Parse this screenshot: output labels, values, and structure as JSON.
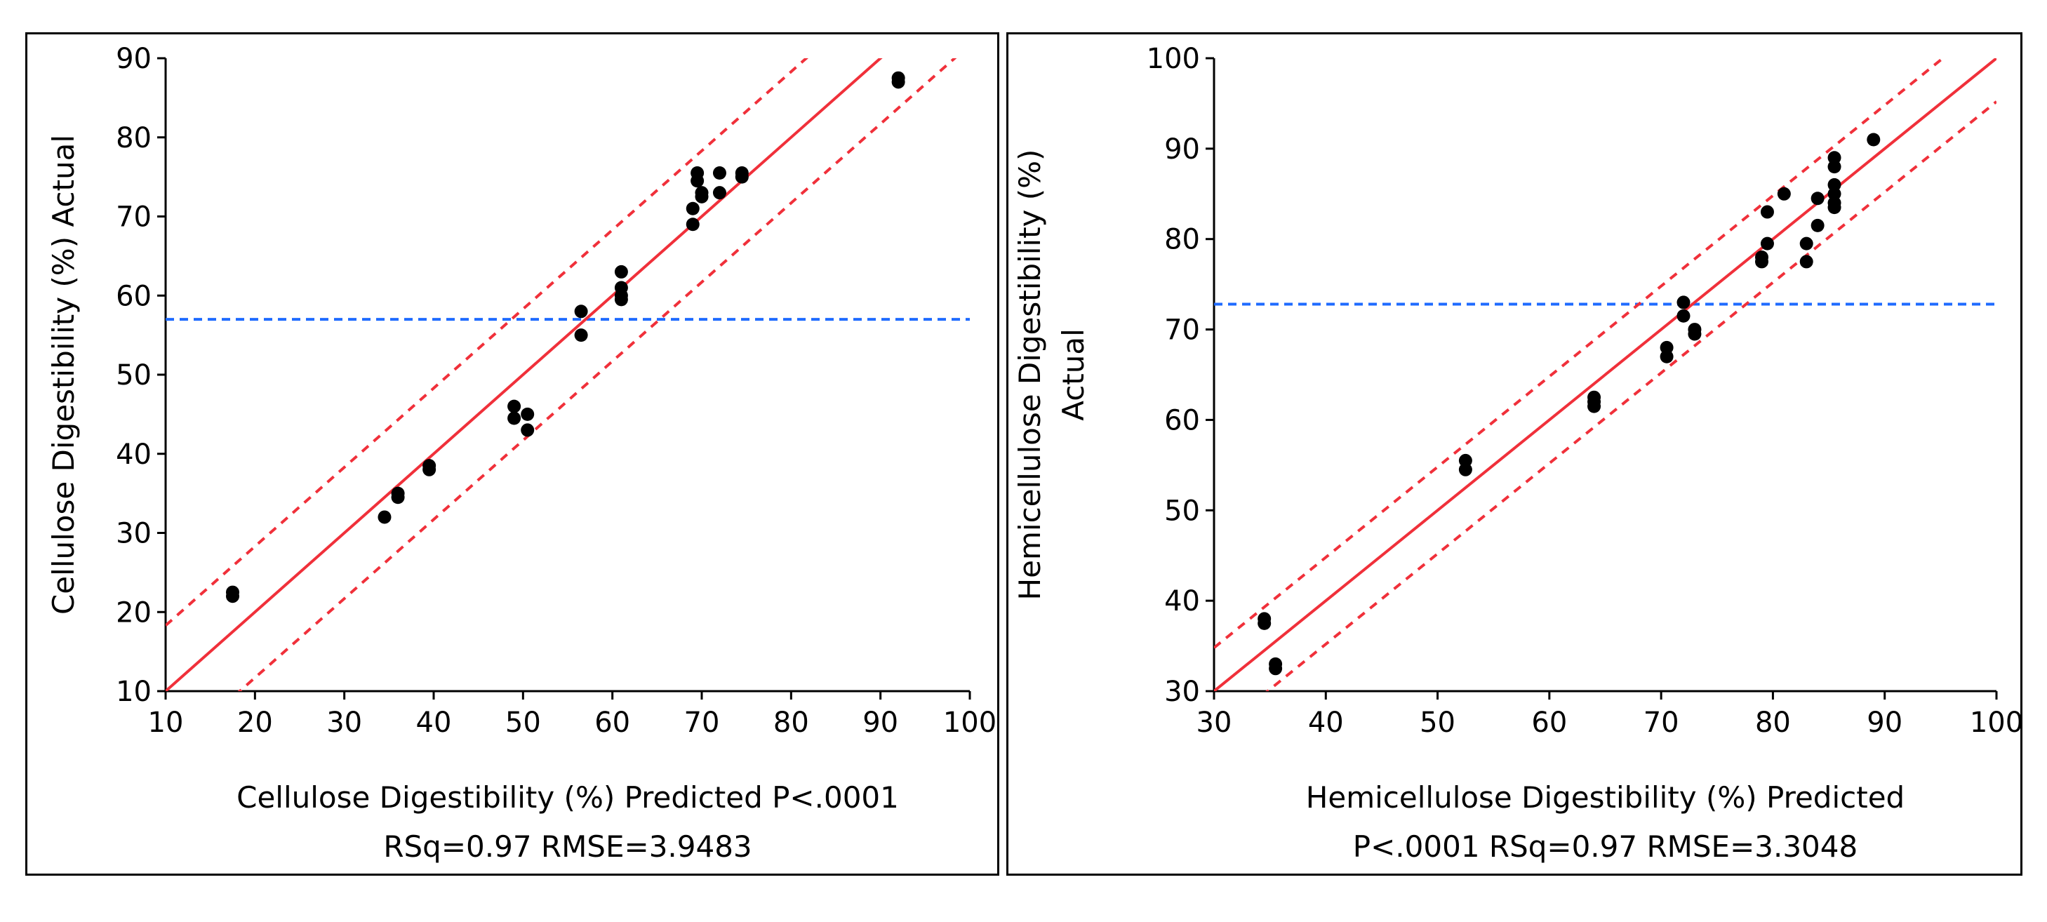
{
  "colors": {
    "fit": "#f0303a",
    "ci": "#f0303a",
    "mean": "#1f6bff",
    "points": "#000000",
    "frame": "#000000"
  },
  "chart_data": [
    {
      "type": "scatter",
      "title": "",
      "xlabel": "Cellulose Digestibility (%) Predicted P<.0001",
      "xlabel2": "RSq=0.97 RMSE=3.9483",
      "ylabel": "Cellulose Digestibility (%) Actual",
      "ylabel2": "",
      "xlim": [
        10,
        100
      ],
      "ylim": [
        10,
        90
      ],
      "xticks": [
        10,
        20,
        30,
        40,
        50,
        60,
        70,
        80,
        90,
        100
      ],
      "yticks": [
        10,
        20,
        30,
        40,
        50,
        60,
        70,
        80,
        90
      ],
      "mean_actual": 57,
      "fit_line": [
        [
          10,
          10
        ],
        [
          100,
          100
        ]
      ],
      "ci_offset": 8.3,
      "points": [
        [
          17.5,
          22.5
        ],
        [
          17.5,
          22
        ],
        [
          34.5,
          32
        ],
        [
          36,
          35
        ],
        [
          36,
          34.5
        ],
        [
          39.5,
          38.5
        ],
        [
          39.5,
          38
        ],
        [
          49,
          46
        ],
        [
          49,
          44.5
        ],
        [
          50.5,
          45
        ],
        [
          50.5,
          43
        ],
        [
          56.5,
          58
        ],
        [
          56.5,
          55
        ],
        [
          61,
          63
        ],
        [
          61,
          61
        ],
        [
          61,
          60
        ],
        [
          61,
          59.5
        ],
        [
          69,
          71
        ],
        [
          69,
          69
        ],
        [
          69.5,
          75.5
        ],
        [
          69.5,
          74.5
        ],
        [
          70,
          73
        ],
        [
          70,
          72.5
        ],
        [
          72,
          75.5
        ],
        [
          72,
          73
        ],
        [
          74.5,
          75.5
        ],
        [
          74.5,
          75
        ],
        [
          92,
          87.5
        ],
        [
          92,
          87
        ]
      ]
    },
    {
      "type": "scatter",
      "title": "",
      "xlabel": "Hemicellulose Digestibility (%) Predicted",
      "xlabel2": "P<.0001 RSq=0.97 RMSE=3.3048",
      "ylabel": "Hemicellulose Digestibility (%)",
      "ylabel2": "Actual",
      "xlim": [
        30,
        100
      ],
      "ylim": [
        30,
        100
      ],
      "xticks": [
        30,
        40,
        50,
        60,
        70,
        80,
        90,
        100
      ],
      "yticks": [
        30,
        40,
        50,
        60,
        70,
        80,
        90,
        100
      ],
      "mean_actual": 72.8,
      "fit_line": [
        [
          30,
          30
        ],
        [
          100,
          100
        ]
      ],
      "ci_offset": 4.8,
      "points": [
        [
          34.5,
          38
        ],
        [
          34.5,
          37.5
        ],
        [
          35.5,
          33
        ],
        [
          35.5,
          32.5
        ],
        [
          52.5,
          55.5
        ],
        [
          52.5,
          54.5
        ],
        [
          64,
          62.5
        ],
        [
          64,
          62
        ],
        [
          64,
          61.5
        ],
        [
          70.5,
          68
        ],
        [
          70.5,
          67
        ],
        [
          72,
          73
        ],
        [
          72,
          71.5
        ],
        [
          73,
          70
        ],
        [
          73,
          69.5
        ],
        [
          79,
          78
        ],
        [
          79,
          77.5
        ],
        [
          79.5,
          83
        ],
        [
          79.5,
          79.5
        ],
        [
          81,
          85
        ],
        [
          83,
          79.5
        ],
        [
          83,
          77.5
        ],
        [
          84,
          84.5
        ],
        [
          84,
          81.5
        ],
        [
          85.5,
          89
        ],
        [
          85.5,
          88
        ],
        [
          85.5,
          86
        ],
        [
          85.5,
          85
        ],
        [
          85.5,
          84
        ],
        [
          85.5,
          83.5
        ],
        [
          89,
          91
        ]
      ]
    }
  ]
}
